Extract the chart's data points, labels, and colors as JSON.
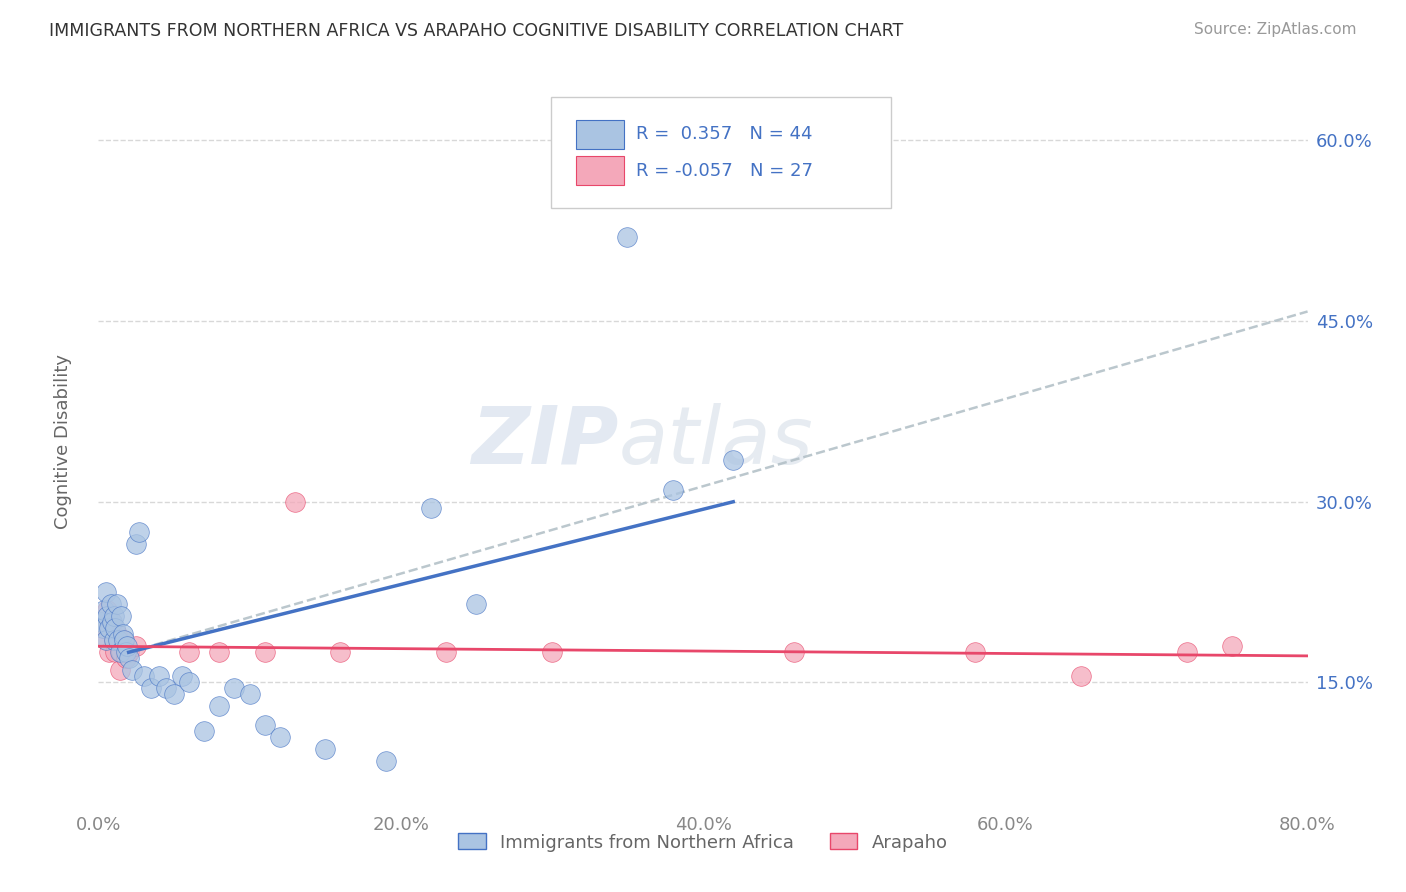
{
  "title": "IMMIGRANTS FROM NORTHERN AFRICA VS ARAPAHO COGNITIVE DISABILITY CORRELATION CHART",
  "source": "Source: ZipAtlas.com",
  "ylabel": "Cognitive Disability",
  "x_series1_label": "Immigrants from Northern Africa",
  "x_series2_label": "Arapaho",
  "r1": 0.357,
  "n1": 44,
  "r2": -0.057,
  "n2": 27,
  "color1": "#aac4e2",
  "color2": "#f4a8ba",
  "color1_line": "#4472c4",
  "color2_line": "#e8476a",
  "xlim": [
    0.0,
    0.8
  ],
  "ylim": [
    0.05,
    0.65
  ],
  "yticks": [
    0.15,
    0.3,
    0.45,
    0.6
  ],
  "xticks": [
    0.0,
    0.2,
    0.4,
    0.6,
    0.8
  ],
  "watermark": "ZIPatlas",
  "background_color": "#ffffff",
  "grid_color": "#d8d8d8",
  "blue_dots": [
    [
      0.002,
      0.2
    ],
    [
      0.003,
      0.195
    ],
    [
      0.004,
      0.21
    ],
    [
      0.005,
      0.185
    ],
    [
      0.005,
      0.225
    ],
    [
      0.006,
      0.205
    ],
    [
      0.007,
      0.195
    ],
    [
      0.008,
      0.215
    ],
    [
      0.009,
      0.2
    ],
    [
      0.01,
      0.185
    ],
    [
      0.01,
      0.205
    ],
    [
      0.011,
      0.195
    ],
    [
      0.012,
      0.215
    ],
    [
      0.013,
      0.185
    ],
    [
      0.014,
      0.175
    ],
    [
      0.015,
      0.205
    ],
    [
      0.016,
      0.19
    ],
    [
      0.017,
      0.185
    ],
    [
      0.018,
      0.175
    ],
    [
      0.019,
      0.18
    ],
    [
      0.02,
      0.17
    ],
    [
      0.022,
      0.16
    ],
    [
      0.025,
      0.265
    ],
    [
      0.027,
      0.275
    ],
    [
      0.03,
      0.155
    ],
    [
      0.035,
      0.145
    ],
    [
      0.04,
      0.155
    ],
    [
      0.045,
      0.145
    ],
    [
      0.05,
      0.14
    ],
    [
      0.055,
      0.155
    ],
    [
      0.06,
      0.15
    ],
    [
      0.07,
      0.11
    ],
    [
      0.08,
      0.13
    ],
    [
      0.09,
      0.145
    ],
    [
      0.1,
      0.14
    ],
    [
      0.11,
      0.115
    ],
    [
      0.12,
      0.105
    ],
    [
      0.15,
      0.095
    ],
    [
      0.19,
      0.085
    ],
    [
      0.22,
      0.295
    ],
    [
      0.25,
      0.215
    ],
    [
      0.35,
      0.52
    ],
    [
      0.38,
      0.31
    ],
    [
      0.42,
      0.335
    ]
  ],
  "pink_dots": [
    [
      0.003,
      0.195
    ],
    [
      0.005,
      0.185
    ],
    [
      0.006,
      0.21
    ],
    [
      0.007,
      0.175
    ],
    [
      0.008,
      0.195
    ],
    [
      0.009,
      0.2
    ],
    [
      0.01,
      0.185
    ],
    [
      0.011,
      0.175
    ],
    [
      0.012,
      0.19
    ],
    [
      0.014,
      0.16
    ],
    [
      0.015,
      0.175
    ],
    [
      0.016,
      0.185
    ],
    [
      0.018,
      0.17
    ],
    [
      0.02,
      0.175
    ],
    [
      0.025,
      0.18
    ],
    [
      0.06,
      0.175
    ],
    [
      0.08,
      0.175
    ],
    [
      0.11,
      0.175
    ],
    [
      0.13,
      0.3
    ],
    [
      0.16,
      0.175
    ],
    [
      0.23,
      0.175
    ],
    [
      0.3,
      0.175
    ],
    [
      0.46,
      0.175
    ],
    [
      0.58,
      0.175
    ],
    [
      0.65,
      0.155
    ],
    [
      0.72,
      0.175
    ],
    [
      0.75,
      0.18
    ]
  ],
  "blue_line_x": [
    0.02,
    0.42
  ],
  "blue_line_y": [
    0.175,
    0.3
  ],
  "pink_line_x": [
    0.0,
    0.8
  ],
  "pink_line_y": [
    0.18,
    0.172
  ],
  "dash_line_x": [
    0.02,
    0.8
  ],
  "dash_line_y": [
    0.175,
    0.458
  ]
}
